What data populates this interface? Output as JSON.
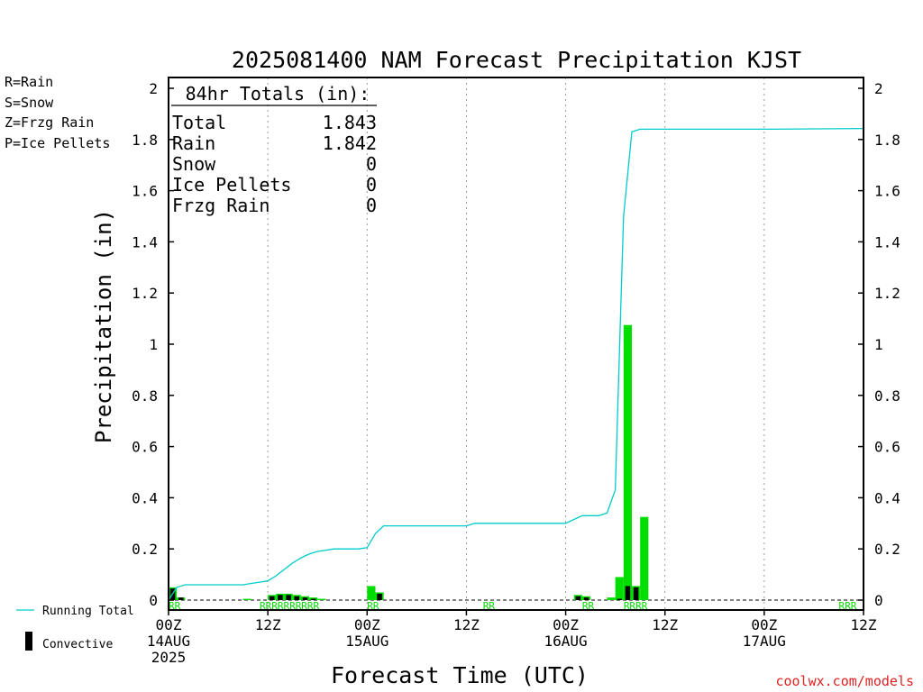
{
  "chart_data": {
    "type": "bar",
    "title": "2025081400 NAM Forecast Precipitation KJST",
    "xlabel": "Forecast Time (UTC)",
    "ylabel": "Precipitation (in)",
    "ylim": [
      0,
      2
    ],
    "yticks": [
      "0",
      "0.2",
      "0.4",
      "0.6",
      "0.8",
      "1",
      "1.2",
      "1.4",
      "1.6",
      "1.8",
      "2"
    ],
    "xlim_hours": [
      0,
      84
    ],
    "xticks": [
      {
        "hour": 0,
        "line1": "00Z",
        "line2": "14AUG",
        "line3": "2025"
      },
      {
        "hour": 12,
        "line1": "12Z",
        "line2": "",
        "line3": ""
      },
      {
        "hour": 24,
        "line1": "00Z",
        "line2": "15AUG",
        "line3": ""
      },
      {
        "hour": 36,
        "line1": "12Z",
        "line2": "",
        "line3": ""
      },
      {
        "hour": 48,
        "line1": "00Z",
        "line2": "16AUG",
        "line3": ""
      },
      {
        "hour": 60,
        "line1": "12Z",
        "line2": "",
        "line3": ""
      },
      {
        "hour": 72,
        "line1": "00Z",
        "line2": "17AUG",
        "line3": ""
      },
      {
        "hour": 84,
        "line1": "12Z",
        "line2": "",
        "line3": ""
      }
    ],
    "legend": [
      "R=Rain",
      "S=Snow",
      "Z=Frzg Rain",
      "P=Ice Pellets"
    ],
    "legend_colors": [
      "#00dd00",
      "#3355dd",
      "#ff8833",
      "#ee2288"
    ],
    "bottom_legend": {
      "line": "Running Total",
      "bar": "Convective"
    },
    "totals_box": {
      "header": "84hr Totals (in):",
      "rows": [
        {
          "label": "Total",
          "value": "1.843"
        },
        {
          "label": "Rain",
          "value": "1.842"
        },
        {
          "label": "Snow",
          "value": "0"
        },
        {
          "label": "Ice Pellets",
          "value": "0"
        },
        {
          "label": "Frzg Rain",
          "value": "0"
        }
      ]
    },
    "series": [
      {
        "name": "Rain",
        "color": "#00dd00",
        "hours": [
          1,
          2,
          10,
          13,
          14,
          15,
          16,
          17,
          18,
          19,
          25,
          26,
          50,
          51,
          54,
          55,
          56,
          57,
          58
        ],
        "values": [
          0.05,
          0.01,
          0.005,
          0.02,
          0.025,
          0.025,
          0.02,
          0.015,
          0.01,
          0.005,
          0.055,
          0.03,
          0.02,
          0.015,
          0.01,
          0.09,
          1.075,
          0.055,
          0.325
        ]
      },
      {
        "name": "Convective",
        "color": "#000000",
        "hours": [
          1,
          2,
          13,
          14,
          15,
          16,
          17,
          18,
          26,
          50,
          51,
          55,
          56,
          57
        ],
        "values": [
          0.045,
          0.01,
          0.015,
          0.02,
          0.02,
          0.015,
          0.01,
          0.005,
          0.025,
          0.015,
          0.01,
          0.005,
          0.055,
          0.05
        ]
      },
      {
        "name": "Running Total",
        "color": "#00cccc",
        "hours": [
          0,
          1,
          2,
          9,
          10,
          11,
          12,
          13,
          14,
          15,
          16,
          17,
          18,
          19,
          20,
          21,
          22,
          23,
          24,
          25,
          26,
          27,
          28,
          36,
          37,
          38,
          48,
          49,
          50,
          51,
          52,
          53,
          54,
          55,
          56,
          57,
          58,
          72,
          73,
          84
        ],
        "values": [
          0,
          0.05,
          0.06,
          0.06,
          0.065,
          0.07,
          0.075,
          0.095,
          0.12,
          0.145,
          0.165,
          0.18,
          0.19,
          0.195,
          0.2,
          0.2,
          0.2,
          0.2,
          0.205,
          0.26,
          0.29,
          0.29,
          0.29,
          0.29,
          0.3,
          0.3,
          0.3,
          0.315,
          0.33,
          0.33,
          0.33,
          0.34,
          0.43,
          1.5,
          1.83,
          1.84,
          1.84,
          1.84,
          1.84,
          1.843
        ]
      }
    ],
    "ptype_markers": [
      {
        "hour": 1,
        "text": "RR"
      },
      {
        "hour": 12,
        "text": "RRRRRRRRRR"
      },
      {
        "hour": 25,
        "text": "RR"
      },
      {
        "hour": 39,
        "text": "RR"
      },
      {
        "hour": 51,
        "text": "RR"
      },
      {
        "hour": 56,
        "text": "RRRR"
      },
      {
        "hour": 82,
        "text": "RRR"
      }
    ]
  },
  "credit": "coolwx.com/models"
}
